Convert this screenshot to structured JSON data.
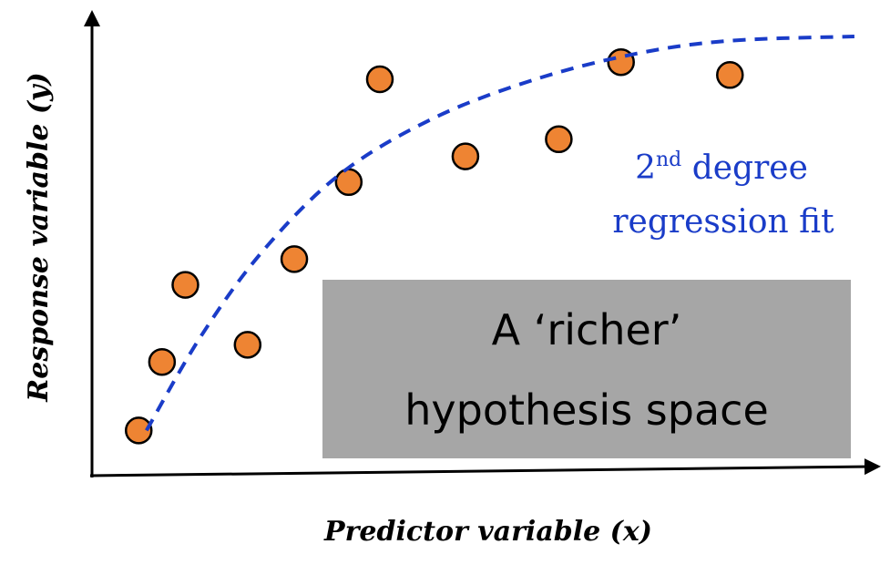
{
  "chart_data": {
    "type": "scatter",
    "xlabel": "Predictor variable (x)",
    "ylabel": "Response variable (y)",
    "xlim": [
      0,
      100
    ],
    "ylim": [
      0,
      100
    ],
    "points": [
      {
        "x": 6,
        "y": 8
      },
      {
        "x": 9,
        "y": 24
      },
      {
        "x": 12,
        "y": 42
      },
      {
        "x": 20,
        "y": 28
      },
      {
        "x": 26,
        "y": 48
      },
      {
        "x": 33,
        "y": 66
      },
      {
        "x": 37,
        "y": 90
      },
      {
        "x": 48,
        "y": 72
      },
      {
        "x": 60,
        "y": 76
      },
      {
        "x": 68,
        "y": 94
      },
      {
        "x": 82,
        "y": 91
      }
    ],
    "fit_curve": {
      "label_prefix": "2",
      "label_sup": "nd",
      "label_line1_rest": " degree",
      "label_line2": "regression fit",
      "points": [
        {
          "x": 7,
          "y": 8
        },
        {
          "x": 14,
          "y": 30
        },
        {
          "x": 22,
          "y": 50
        },
        {
          "x": 32,
          "y": 68
        },
        {
          "x": 44,
          "y": 81
        },
        {
          "x": 57,
          "y": 90
        },
        {
          "x": 70,
          "y": 96
        },
        {
          "x": 82,
          "y": 99
        },
        {
          "x": 98,
          "y": 100
        }
      ]
    },
    "annotations": [
      "A ‘richer’",
      "hypothesis space"
    ],
    "grid": false,
    "colors": {
      "point_fill": "#ee8433",
      "point_stroke": "#000000",
      "fit_line": "#1a3cc8",
      "callout_box": "#a6a6a6",
      "axis": "#000000"
    }
  }
}
